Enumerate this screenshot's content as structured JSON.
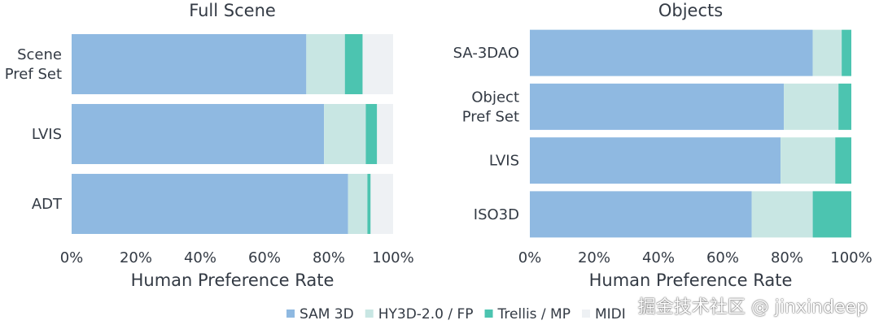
{
  "colors": {
    "SAM 3D": "#8fb9e1",
    "HY3D-2.0 / FP": "#c8e6e3",
    "Trellis / MP": "#4cc4b0",
    "MIDI": "#eef1f4"
  },
  "legend": [
    "SAM 3D",
    "HY3D-2.0 / FP",
    "Trellis / MP",
    "MIDI"
  ],
  "watermark": "掘金技术社区 @ jinxindeep",
  "chart_data": [
    {
      "type": "bar",
      "orientation": "horizontal",
      "stacked": true,
      "title": "Full Scene",
      "xlabel": "Human Preference Rate",
      "ylabel": "",
      "xlim": [
        0,
        100
      ],
      "xticks": [
        "0%",
        "20%",
        "40%",
        "60%",
        "80%",
        "100%"
      ],
      "categories": [
        [
          "Scene",
          "Pref Set"
        ],
        [
          "LVIS"
        ],
        [
          "ADT"
        ]
      ],
      "series": [
        {
          "name": "SAM 3D",
          "values": [
            73,
            78.5,
            86
          ]
        },
        {
          "name": "HY3D-2.0 / FP",
          "values": [
            12,
            13,
            6
          ]
        },
        {
          "name": "Trellis / MP",
          "values": [
            5.5,
            3.5,
            1
          ]
        },
        {
          "name": "MIDI",
          "values": [
            9.5,
            5,
            7
          ]
        }
      ]
    },
    {
      "type": "bar",
      "orientation": "horizontal",
      "stacked": true,
      "title": "Objects",
      "xlabel": "Human Preference Rate",
      "ylabel": "",
      "xlim": [
        0,
        100
      ],
      "xticks": [
        "0%",
        "20%",
        "40%",
        "60%",
        "80%",
        "100%"
      ],
      "categories": [
        [
          "SA-3DAO"
        ],
        [
          "Object",
          "Pref Set"
        ],
        [
          "LVIS"
        ],
        [
          "ISO3D"
        ]
      ],
      "series": [
        {
          "name": "SAM 3D",
          "values": [
            88,
            79,
            78,
            69
          ]
        },
        {
          "name": "HY3D-2.0 / FP",
          "values": [
            9,
            17,
            17,
            19
          ]
        },
        {
          "name": "Trellis / MP",
          "values": [
            3,
            4,
            5,
            12
          ]
        }
      ]
    }
  ]
}
